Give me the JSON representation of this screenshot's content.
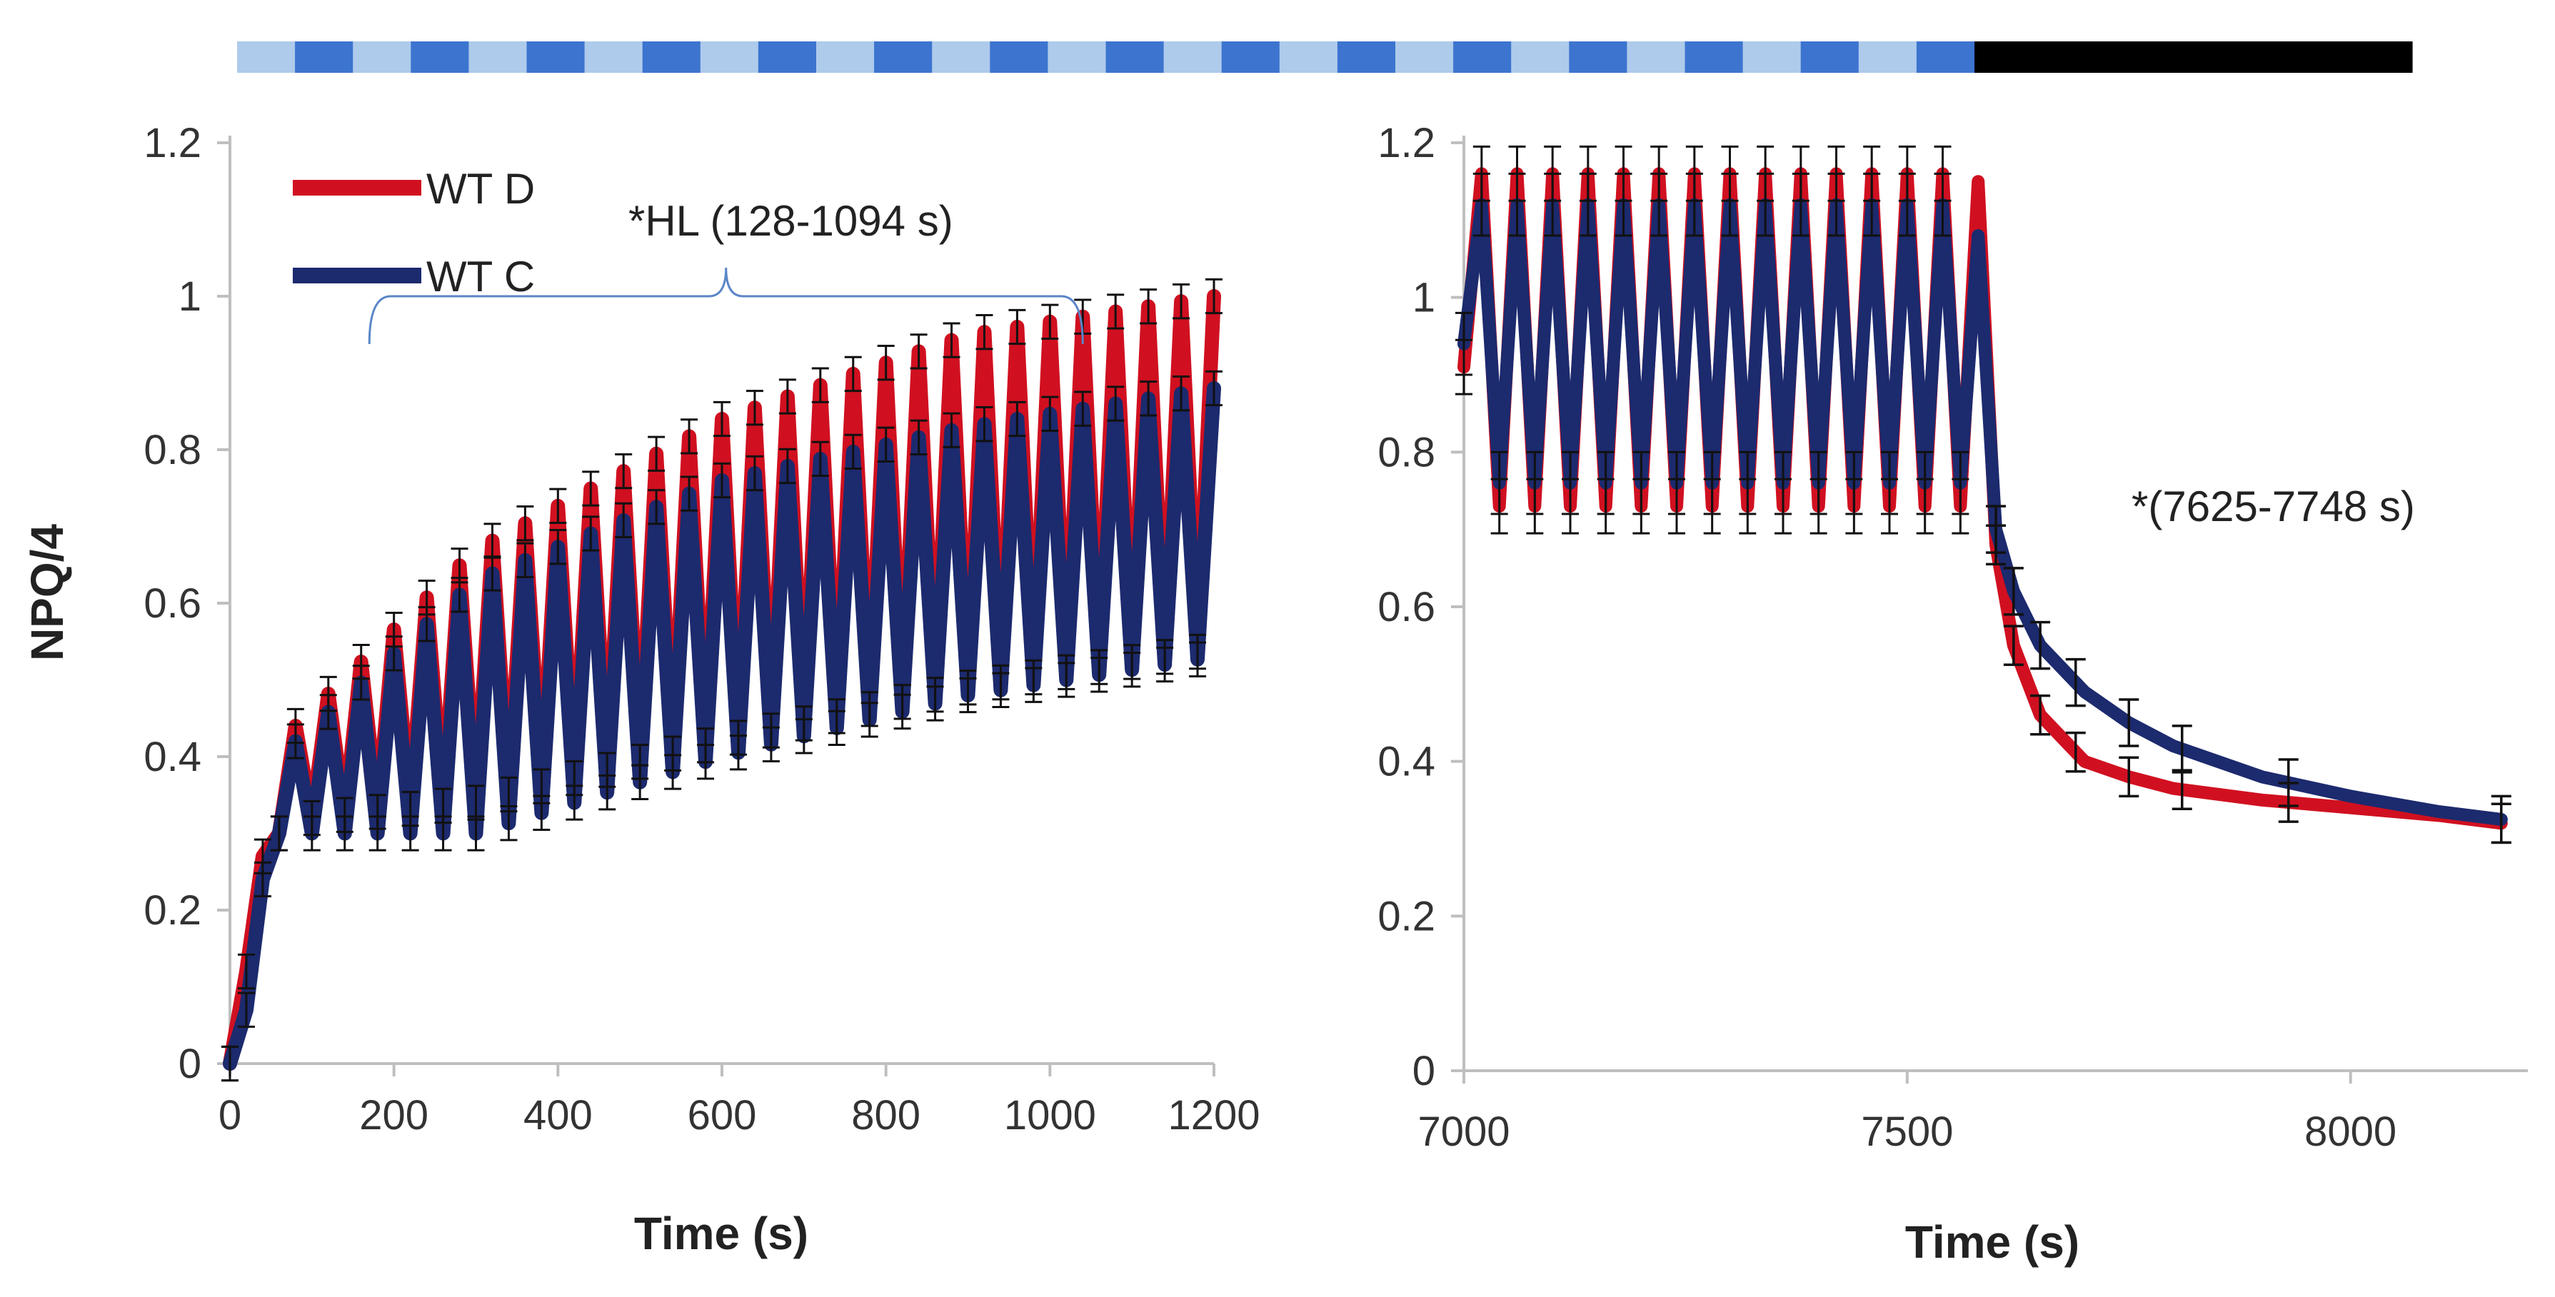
{
  "light_bar": {
    "segments": [
      {
        "name": "fluctuating-light",
        "from_s": 0,
        "to_s": 1200,
        "colors": [
          "#aecbeb",
          "#3c74cf"
        ]
      },
      {
        "name": "dark",
        "from_s": 7580,
        "to_s": 8070,
        "color": "#000000"
      }
    ]
  },
  "colors": {
    "wt_d": "#d01020",
    "wt_c": "#1c2a6e",
    "errorbar": "#111111",
    "axis": "#bfbfbf",
    "bracket": "#5b86c8"
  },
  "chart_data": [
    {
      "type": "line",
      "name": "left-panel",
      "xlabel": "Time (s)",
      "ylabel": "NPQ/4",
      "xlim": [
        0,
        1200
      ],
      "ylim": [
        0,
        1.2
      ],
      "xticks": [
        "0",
        "200",
        "400",
        "600",
        "800",
        "1000",
        "1200"
      ],
      "yticks": [
        "0",
        "0.2",
        "0.4",
        "0.6",
        "0.8",
        "1",
        "1.2"
      ],
      "legend": {
        "position": "top-left",
        "entries": [
          "WT D",
          "WT C"
        ]
      },
      "annotation": {
        "text": "*HL (128-1094 s)",
        "x_from": 170,
        "x_to": 1040
      },
      "oscillation": {
        "start_s": 60,
        "period_s": 40,
        "end_s": 1200
      },
      "series": [
        {
          "name": "WT D",
          "initial": {
            "x": [
              0,
              20,
              40,
              60
            ],
            "y": [
              0.0,
              0.12,
              0.27,
              0.3
            ]
          },
          "peak_points": {
            "x": [
              80,
              300,
              600,
              900,
              1200
            ],
            "y": [
              0.44,
              0.67,
              0.84,
              0.95,
              1.0
            ]
          },
          "trough_points": {
            "x": [
              100,
              300,
              600,
              900,
              1200
            ],
            "y": [
              0.32,
              0.34,
              0.42,
              0.49,
              0.54
            ]
          },
          "error": 0.022
        },
        {
          "name": "WT C",
          "initial": {
            "x": [
              0,
              20,
              40,
              60
            ],
            "y": [
              0.0,
              0.07,
              0.24,
              0.3
            ]
          },
          "peak_points": {
            "x": [
              80,
              300,
              600,
              900,
              1200
            ],
            "y": [
              0.42,
              0.63,
              0.76,
              0.83,
              0.88
            ]
          },
          "trough_points": {
            "x": [
              100,
              300,
              600,
              900,
              1200
            ],
            "y": [
              0.3,
              0.3,
              0.4,
              0.48,
              0.53
            ]
          },
          "error": 0.022
        }
      ]
    },
    {
      "type": "line",
      "name": "right-panel",
      "xlabel": "Time (s)",
      "xlim": [
        7000,
        8200
      ],
      "ylim": [
        0,
        1.2
      ],
      "xticks": [
        "7000",
        "7500",
        "8000"
      ],
      "yticks": [
        "0",
        "0.2",
        "0.4",
        "0.6",
        "0.8",
        "1",
        "1.2"
      ],
      "annotation": {
        "text": "*(7625-7748 s)"
      },
      "oscillation": {
        "start_s": 7000,
        "period_s": 40,
        "end_s": 7580
      },
      "series": [
        {
          "name": "WT D",
          "osc_peak": 1.16,
          "osc_trough": 0.73,
          "decay": {
            "x": [
              7580,
              7600,
              7620,
              7650,
              7700,
              7750,
              7800,
              7900,
              8000,
              8100,
              8170
            ],
            "y": [
              1.15,
              0.68,
              0.55,
              0.46,
              0.4,
              0.38,
              0.365,
              0.35,
              0.34,
              0.33,
              0.32
            ]
          },
          "error_points": [
            7600,
            7620,
            7650,
            7690,
            7750,
            7810,
            7930,
            8170
          ],
          "error": 0.025
        },
        {
          "name": "WT C",
          "osc_peak": 1.12,
          "osc_trough": 0.76,
          "decay": {
            "x": [
              7580,
              7600,
              7620,
              7650,
              7700,
              7750,
              7800,
              7900,
              8000,
              8100,
              8170
            ],
            "y": [
              1.08,
              0.7,
              0.62,
              0.55,
              0.49,
              0.45,
              0.42,
              0.38,
              0.355,
              0.335,
              0.325
            ]
          },
          "error_points": [
            7600,
            7620,
            7650,
            7690,
            7750,
            7810,
            7930,
            8170
          ],
          "error": 0.03
        }
      ]
    }
  ]
}
